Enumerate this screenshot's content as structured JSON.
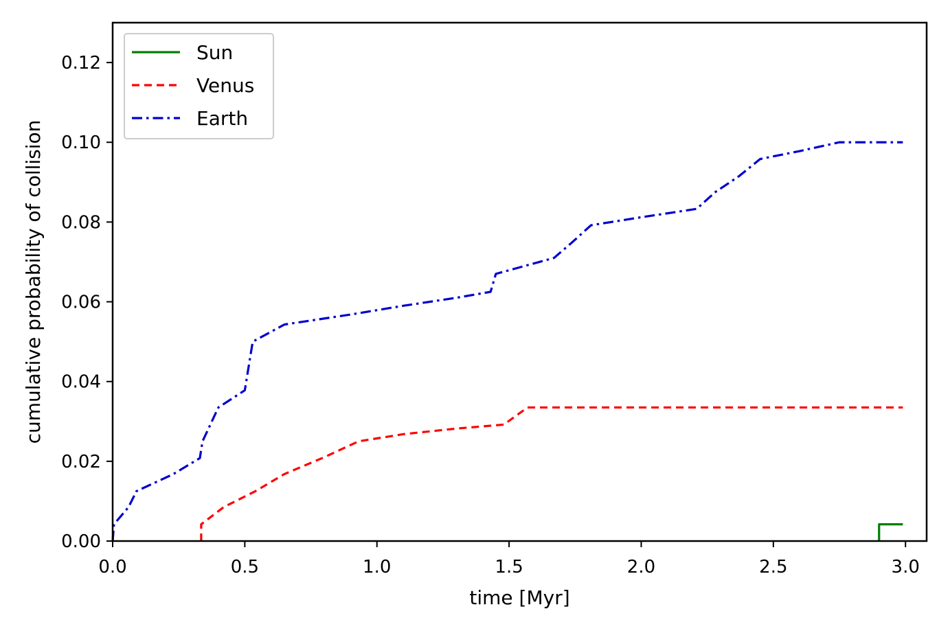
{
  "chart_data": {
    "type": "line",
    "title": "",
    "xlabel": "time [Myr]",
    "ylabel": "cumulative probability of collision",
    "xlim": [
      0.0,
      3.08
    ],
    "ylim": [
      0.0,
      0.13
    ],
    "xticks": [
      0.0,
      0.5,
      1.0,
      1.5,
      2.0,
      2.5,
      3.0
    ],
    "xtick_labels": [
      "0.0",
      "0.5",
      "1.0",
      "1.5",
      "2.0",
      "2.5",
      "3.0"
    ],
    "yticks": [
      0.0,
      0.02,
      0.04,
      0.06,
      0.08,
      0.1,
      0.12
    ],
    "ytick_labels": [
      "0.00",
      "0.02",
      "0.04",
      "0.06",
      "0.08",
      "0.10",
      "0.12"
    ],
    "grid": false,
    "legend_position": "top-left",
    "series": [
      {
        "name": "Sun",
        "color": "#008000",
        "style": "solid",
        "points": [
          [
            2.9,
            0.0
          ],
          [
            2.9,
            0.0042
          ],
          [
            2.99,
            0.0042
          ]
        ]
      },
      {
        "name": "Venus",
        "color": "#ff0000",
        "style": "dashed",
        "points": [
          [
            0.335,
            0.0
          ],
          [
            0.335,
            0.0042
          ],
          [
            0.42,
            0.0085
          ],
          [
            0.54,
            0.0125
          ],
          [
            0.65,
            0.0168
          ],
          [
            0.8,
            0.021
          ],
          [
            0.93,
            0.025
          ],
          [
            1.1,
            0.0268
          ],
          [
            1.3,
            0.0282
          ],
          [
            1.48,
            0.0292
          ],
          [
            1.57,
            0.0335
          ],
          [
            2.0,
            0.0335
          ],
          [
            2.5,
            0.0335
          ],
          [
            2.99,
            0.0335
          ]
        ]
      },
      {
        "name": "Earth",
        "color": "#0000cc",
        "style": "dashdot",
        "points": [
          [
            0.0,
            0.0
          ],
          [
            0.005,
            0.0042
          ],
          [
            0.06,
            0.0085
          ],
          [
            0.09,
            0.0125
          ],
          [
            0.23,
            0.0168
          ],
          [
            0.33,
            0.0208
          ],
          [
            0.34,
            0.025
          ],
          [
            0.4,
            0.0335
          ],
          [
            0.5,
            0.0378
          ],
          [
            0.53,
            0.05
          ],
          [
            0.65,
            0.0543
          ],
          [
            0.9,
            0.0568
          ],
          [
            1.1,
            0.059
          ],
          [
            1.3,
            0.061
          ],
          [
            1.43,
            0.0625
          ],
          [
            1.45,
            0.067
          ],
          [
            1.67,
            0.071
          ],
          [
            1.74,
            0.075
          ],
          [
            1.81,
            0.0792
          ],
          [
            2.0,
            0.0812
          ],
          [
            2.21,
            0.0833
          ],
          [
            2.28,
            0.0875
          ],
          [
            2.37,
            0.0915
          ],
          [
            2.45,
            0.0958
          ],
          [
            2.6,
            0.0978
          ],
          [
            2.75,
            0.1
          ],
          [
            2.99,
            0.1
          ]
        ]
      }
    ]
  }
}
